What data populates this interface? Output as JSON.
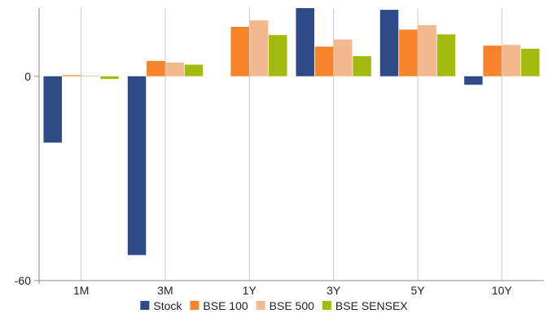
{
  "chart_data": {
    "type": "bar",
    "title": "",
    "xlabel": "",
    "ylabel": "",
    "categories": [
      "1M",
      "3M",
      "1Y",
      "3Y",
      "5Y",
      "10Y"
    ],
    "y_ticks": [
      0,
      -60
    ],
    "ylim": [
      -60,
      20
    ],
    "grid": "vertical",
    "legend_position": "bottom",
    "series": [
      {
        "name": "Stock",
        "color": "#2f4b87",
        "values": [
          -19.5,
          -52.5,
          0,
          20.0,
          19.5,
          -2.5
        ]
      },
      {
        "name": "BSE 100",
        "color": "#f7832a",
        "values": [
          0.3,
          4.5,
          14.5,
          8.7,
          13.7,
          9.0
        ]
      },
      {
        "name": "BSE 500",
        "color": "#f4b88f",
        "values": [
          0.2,
          4.0,
          16.4,
          10.8,
          15.0,
          9.2
        ]
      },
      {
        "name": "BSE SENSEX",
        "color": "#a3bb10",
        "values": [
          -0.8,
          3.4,
          12.1,
          5.9,
          12.3,
          8.1
        ]
      }
    ]
  }
}
